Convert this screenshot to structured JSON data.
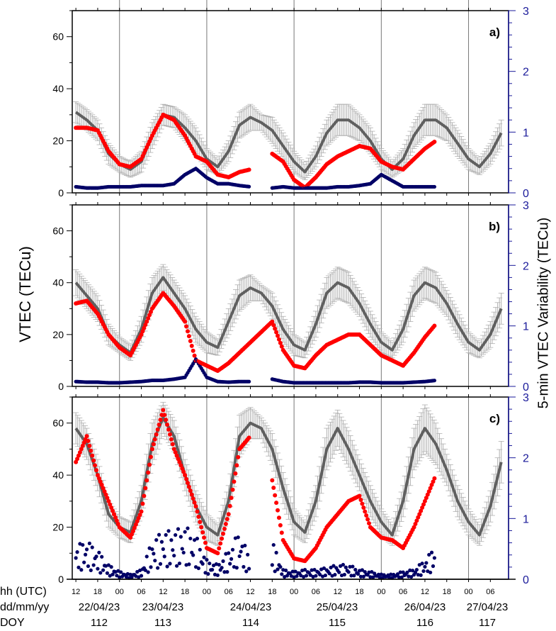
{
  "chart_data": {
    "type": "scatter",
    "left_ylabel": "VTEC (TECu)",
    "right_ylabel": "5-min VTEC Variability (TECu)",
    "left_ylim": [
      0,
      70
    ],
    "right_ylim": [
      0,
      3
    ],
    "left_yticks": [
      "0",
      "20",
      "40",
      "60"
    ],
    "right_yticks": [
      "0",
      "1",
      "2",
      "3"
    ],
    "xlim": [
      "2023-04-22T11:00",
      "2023-04-27T11:00"
    ],
    "x_rows": {
      "hh_label": "hh (UTC)",
      "dd_label": "dd/mm/yy",
      "doy_label": "DOY",
      "hh_ticks": [
        "12",
        "18",
        "00",
        "06",
        "12",
        "18",
        "00",
        "06",
        "12",
        "18",
        "00",
        "06",
        "12",
        "18",
        "00",
        "06",
        "12",
        "18",
        "00",
        "06"
      ],
      "dates": [
        "22/04/23",
        "23/04/23",
        "24/04/23",
        "25/04/23",
        "26/04/23",
        "27/04/23"
      ],
      "doy": [
        "112",
        "113",
        "114",
        "115",
        "116",
        "117"
      ]
    },
    "colors": {
      "median": "#606060",
      "error_bar": "#b0b0b0",
      "observed": "#ff0000",
      "variability": "#000066",
      "right_axis": "#1a1a9a"
    },
    "grid": "vertical lines at 00 UTC",
    "times": [
      "2023-04-22T12",
      "2023-04-22T15",
      "2023-04-22T18",
      "2023-04-22T21",
      "2023-04-23T00",
      "2023-04-23T03",
      "2023-04-23T06",
      "2023-04-23T09",
      "2023-04-23T12",
      "2023-04-23T15",
      "2023-04-23T18",
      "2023-04-23T21",
      "2023-04-24T00",
      "2023-04-24T03",
      "2023-04-24T06",
      "2023-04-24T09",
      "2023-04-24T12",
      "2023-04-24T15",
      "2023-04-24T18",
      "2023-04-24T21",
      "2023-04-25T00",
      "2023-04-25T03",
      "2023-04-25T06",
      "2023-04-25T09",
      "2023-04-25T12",
      "2023-04-25T15",
      "2023-04-25T18",
      "2023-04-25T21",
      "2023-04-26T00",
      "2023-04-26T03",
      "2023-04-26T06",
      "2023-04-26T09",
      "2023-04-26T12",
      "2023-04-26T15",
      "2023-04-26T18",
      "2023-04-26T21",
      "2023-04-27T00",
      "2023-04-27T03",
      "2023-04-27T06",
      "2023-04-27T09"
    ],
    "panels": [
      {
        "label": "a)",
        "median": [
          31,
          28,
          24,
          15,
          11,
          9,
          12,
          22,
          30,
          29,
          25,
          20,
          13,
          10,
          16,
          26,
          29,
          27,
          24,
          18,
          12,
          8,
          14,
          23,
          28,
          28,
          25,
          20,
          13,
          9,
          13,
          22,
          28,
          28,
          25,
          19,
          13,
          10,
          15,
          23
        ],
        "spread": [
          4,
          4,
          4,
          4,
          3,
          3,
          4,
          5,
          4,
          4,
          5,
          5,
          4,
          3,
          4,
          5,
          5,
          3,
          5,
          5,
          4,
          3,
          4,
          5,
          6,
          6,
          5,
          5,
          4,
          3,
          4,
          5,
          6,
          6,
          5,
          5,
          4,
          3,
          4,
          5
        ],
        "observed": [
          25,
          25,
          24,
          16,
          11,
          10,
          13,
          22,
          30,
          28,
          22,
          14,
          12,
          7,
          6,
          8,
          9,
          null,
          15,
          12,
          5,
          2,
          6,
          11,
          14,
          16,
          18,
          17,
          12,
          10,
          9,
          13,
          17,
          20,
          null,
          null,
          null,
          null,
          null,
          null
        ],
        "variability": [
          0.1,
          0.08,
          0.08,
          0.1,
          0.1,
          0.1,
          0.12,
          0.12,
          0.12,
          0.15,
          0.3,
          0.4,
          0.25,
          0.15,
          0.15,
          0.12,
          0.1,
          null,
          0.08,
          0.1,
          0.08,
          0.08,
          0.08,
          0.08,
          0.1,
          0.1,
          0.12,
          0.15,
          0.3,
          0.2,
          0.1,
          0.1,
          0.1,
          0.1,
          null,
          null,
          null,
          null,
          null,
          null
        ]
      },
      {
        "label": "b)",
        "median": [
          40,
          35,
          30,
          20,
          16,
          13,
          22,
          36,
          42,
          36,
          30,
          22,
          17,
          15,
          25,
          35,
          38,
          36,
          31,
          22,
          16,
          14,
          24,
          36,
          40,
          38,
          32,
          24,
          17,
          14,
          22,
          35,
          40,
          38,
          32,
          24,
          17,
          14,
          20,
          30
        ],
        "spread": [
          5,
          5,
          5,
          4,
          3,
          3,
          5,
          6,
          5,
          5,
          5,
          5,
          4,
          3,
          5,
          6,
          5,
          3,
          5,
          5,
          4,
          3,
          5,
          6,
          6,
          6,
          5,
          5,
          4,
          3,
          5,
          6,
          6,
          6,
          5,
          5,
          4,
          3,
          5,
          6
        ],
        "observed": [
          32,
          33,
          28,
          20,
          15,
          12,
          20,
          30,
          36,
          31,
          25,
          10,
          8,
          6,
          9,
          13,
          17,
          21,
          25,
          14,
          8,
          7,
          12,
          16,
          18,
          20,
          20,
          16,
          12,
          10,
          8,
          13,
          19,
          24,
          null,
          null,
          null,
          null,
          null,
          null
        ],
        "variability": [
          0.08,
          0.07,
          0.07,
          0.06,
          0.06,
          0.07,
          0.08,
          0.1,
          0.1,
          0.12,
          0.15,
          0.45,
          0.15,
          0.08,
          0.07,
          0.08,
          0.08,
          null,
          0.12,
          0.08,
          0.06,
          0.06,
          0.06,
          0.06,
          0.06,
          0.06,
          0.07,
          0.07,
          0.06,
          0.06,
          0.06,
          0.07,
          0.08,
          0.1,
          null,
          null,
          null,
          null,
          null,
          null
        ]
      },
      {
        "label": "c)",
        "median": [
          58,
          52,
          40,
          25,
          20,
          18,
          30,
          52,
          62,
          55,
          40,
          28,
          20,
          17,
          30,
          55,
          60,
          58,
          50,
          35,
          22,
          18,
          30,
          50,
          58,
          50,
          40,
          30,
          22,
          17,
          30,
          50,
          58,
          52,
          42,
          30,
          22,
          17,
          28,
          45
        ],
        "spread": [
          6,
          6,
          6,
          5,
          4,
          4,
          6,
          8,
          6,
          6,
          6,
          6,
          5,
          4,
          6,
          8,
          6,
          4,
          6,
          6,
          5,
          4,
          6,
          8,
          7,
          7,
          6,
          6,
          5,
          4,
          6,
          8,
          9,
          8,
          6,
          6,
          5,
          4,
          6,
          8
        ],
        "observed": [
          45,
          55,
          40,
          30,
          20,
          16,
          26,
          50,
          65,
          50,
          40,
          28,
          12,
          10,
          25,
          50,
          55,
          null,
          38,
          15,
          8,
          7,
          12,
          20,
          25,
          30,
          32,
          20,
          16,
          15,
          12,
          20,
          30,
          40,
          null,
          null,
          null,
          null,
          null,
          null
        ],
        "variability": [
          0.35,
          0.4,
          0.3,
          0.15,
          0.08,
          0.05,
          0.1,
          0.4,
          0.5,
          0.5,
          0.55,
          0.45,
          0.2,
          0.15,
          0.3,
          0.5,
          0.2,
          null,
          0.4,
          0.1,
          0.08,
          0.1,
          0.1,
          0.12,
          0.15,
          0.15,
          0.1,
          0.08,
          0.05,
          0.05,
          0.08,
          0.1,
          0.2,
          0.35,
          null,
          null,
          null,
          null,
          null,
          null
        ]
      }
    ]
  }
}
